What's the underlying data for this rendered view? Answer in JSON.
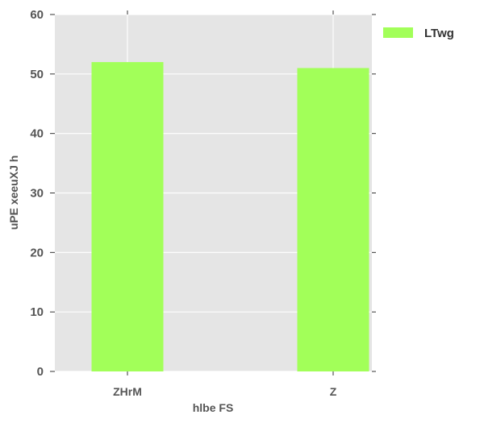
{
  "chart_data": {
    "type": "bar",
    "title": "",
    "xlabel": "hlbe  FS",
    "ylabel": "uPE xeeuXJ h",
    "categories": [
      "ZHrM",
      "Z"
    ],
    "category_label_weights": [
      "bold",
      "normal"
    ],
    "series": [
      {
        "name": "LTwg",
        "values": [
          52,
          51
        ],
        "color": "#a2ff59"
      }
    ],
    "ylim": [
      0,
      60
    ],
    "yticks": [
      0,
      10,
      20,
      30,
      40,
      50,
      60
    ],
    "grid": true,
    "legend_position": "top-right, outside plot",
    "plot_background": "#e5e5e5",
    "grid_color": "#ffffff"
  }
}
